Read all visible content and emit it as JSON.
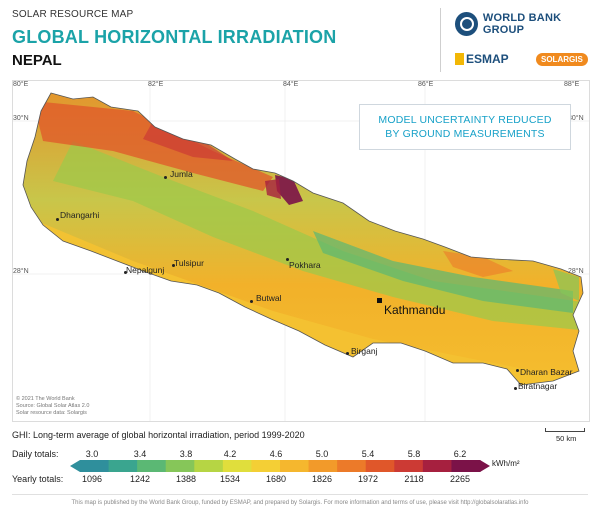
{
  "header": {
    "kicker": "SOLAR RESOURCE MAP",
    "title": "GLOBAL HORIZONTAL IRRADIATION",
    "country": "NEPAL"
  },
  "logos": {
    "world_bank": "WORLD BANK GROUP",
    "esmap": "ESMAP",
    "solargis": "SOLARGIS"
  },
  "map": {
    "lon_ticks": [
      "80°E",
      "82°E",
      "84°E",
      "86°E",
      "88°E"
    ],
    "lat_ticks": [
      "30°N",
      "28°N"
    ],
    "note_line1": "MODEL UNCERTAINTY REDUCED",
    "note_line2": "BY GROUND MEASUREMENTS",
    "cities": [
      "Jumla",
      "Dhangarhi",
      "Nepalgunj",
      "Tulsipur",
      "Pokhara",
      "Butwal",
      "Birganj",
      "Dharan Bazar",
      "Biratnagar"
    ],
    "capital": "Kathmandu",
    "copyright_lines": [
      "© 2021 The World Bank",
      "Source: Global Solar Atlas 2.0",
      "Solar resource data: Solargis"
    ],
    "scale_label": "50 km",
    "colors": {
      "low": "#2b9f8e",
      "mid": "#c7d63c",
      "high": "#f4a720",
      "very_high": "#c7282e",
      "max": "#7b1248"
    }
  },
  "legend": {
    "ghi_caption": "GHI: Long-term average of global horizontal irradiation, period 1999-2020",
    "daily_label": "Daily totals:",
    "yearly_label": "Yearly totals:",
    "daily_values": [
      "3.0",
      "3.4",
      "3.8",
      "4.2",
      "4.6",
      "5.0",
      "5.4",
      "5.8",
      "6.2"
    ],
    "yearly_values": [
      "1096",
      "1242",
      "1388",
      "1534",
      "1680",
      "1826",
      "1972",
      "2118",
      "2265"
    ],
    "unit": "kWh/m²",
    "ramp_colors": [
      "#2f8f9c",
      "#3aa58f",
      "#5bb874",
      "#86c659",
      "#b6d544",
      "#e0de3c",
      "#f4cf35",
      "#f5b72e",
      "#f29a2a",
      "#ec7a29",
      "#e0572a",
      "#cc3a34",
      "#a6203f",
      "#7b1248"
    ]
  },
  "footer": {
    "text": "This map is published by the World Bank Group, funded by ESMAP, and prepared by Solargis. For more information and terms of use, please visit http://globalsolaratlas.info"
  }
}
